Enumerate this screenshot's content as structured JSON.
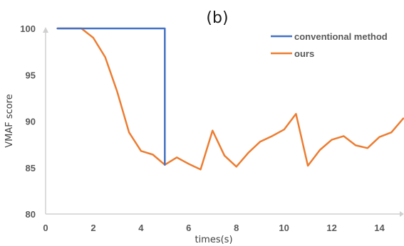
{
  "chart_data": {
    "type": "line",
    "title": "(b)",
    "xlabel": "times(s)",
    "ylabel": "VMAF score",
    "xlim": [
      0,
      15
    ],
    "ylim": [
      80,
      100
    ],
    "xticks": [
      0,
      2,
      4,
      6,
      8,
      10,
      12,
      14
    ],
    "yticks": [
      80,
      85,
      90,
      95,
      100
    ],
    "grid": false,
    "legend_position": "top-right",
    "series": [
      {
        "name": "conventional method",
        "color": "#4472c4",
        "x": [
          0.5,
          5,
          5
        ],
        "y": [
          100,
          100,
          85.3
        ]
      },
      {
        "name": "ours",
        "color": "#ed7d31",
        "x": [
          0.5,
          1.5,
          2,
          2.5,
          3,
          3.5,
          4,
          4.5,
          5,
          5.5,
          6,
          6.5,
          7,
          7.5,
          8,
          8.5,
          9,
          9.5,
          10,
          10.5,
          11,
          11.5,
          12,
          12.5,
          13,
          13.5,
          14,
          14.5,
          15
        ],
        "y": [
          100,
          100,
          99,
          96.9,
          93.2,
          88.8,
          86.8,
          86.4,
          85.3,
          86.1,
          85.4,
          84.8,
          89,
          86.3,
          85.1,
          86.6,
          87.8,
          88.4,
          89.1,
          90.8,
          85.2,
          86.9,
          88,
          88.4,
          87.4,
          87.1,
          88.3,
          88.8,
          90.3
        ]
      }
    ]
  }
}
